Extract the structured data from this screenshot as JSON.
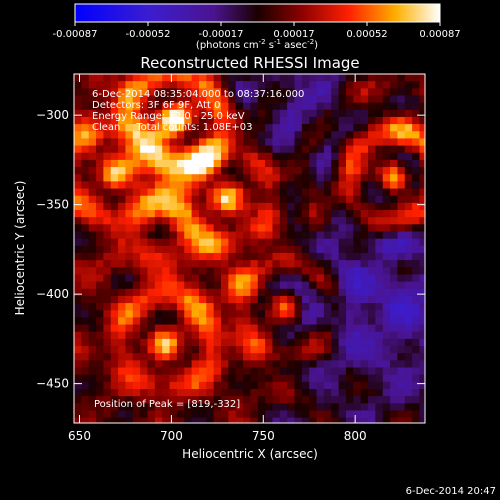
{
  "chart_data": {
    "type": "heatmap",
    "title": "Reconstructed RHESSI Image",
    "xlabel": "Heliocentric X (arcsec)",
    "ylabel": "Heliocentric Y (arcsec)",
    "x_ticks": [
      650,
      700,
      750,
      800
    ],
    "y_ticks": [
      -300,
      -350,
      -400,
      -450
    ],
    "xlim": [
      647,
      838
    ],
    "ylim": [
      -472,
      -277
    ],
    "colorbar": {
      "ticks": [
        "-0.00087",
        "-0.00052",
        "-0.00017",
        "0.00017",
        "0.00052",
        "0.00087"
      ],
      "unit_prefix": "(photons cm",
      "unit_exp1": "-2",
      "unit_mid": " s",
      "unit_exp2": "-1",
      "unit_mid2": " asec",
      "unit_exp3": "-2",
      "unit_suffix": ")",
      "range": [
        -0.00087,
        0.00087
      ]
    },
    "annotations": {
      "time": "6-Dec-2014 08:35:04.000 to 08:37:16.000",
      "detectors": "Detectors: 3F 6F 9F, Att 0",
      "energy": "Energy Range: 12.0 - 25.0 keV",
      "clean": "Clean     Total counts: 1.08E+03",
      "peak": "Position of Peak = [819,-332]",
      "footer": "6-Dec-2014 20:47"
    },
    "bright_sources": [
      {
        "x": 819,
        "y": -332,
        "value": 0.00087
      },
      {
        "x": 700,
        "y": -300,
        "value": 0.0007
      },
      {
        "x": 728,
        "y": -345,
        "value": 0.00065
      },
      {
        "x": 760,
        "y": -405,
        "value": 0.0006
      },
      {
        "x": 695,
        "y": -425,
        "value": 0.00062
      },
      {
        "x": 668,
        "y": -330,
        "value": 0.0005
      }
    ]
  }
}
